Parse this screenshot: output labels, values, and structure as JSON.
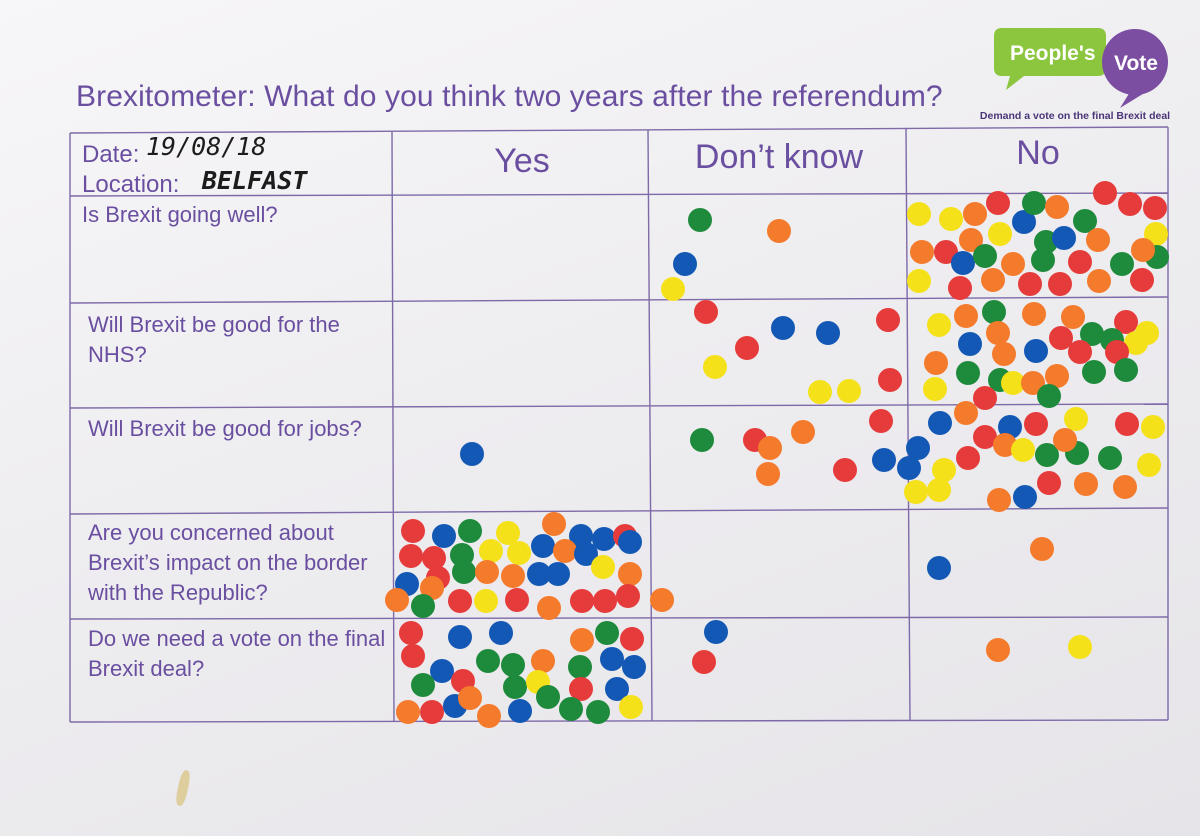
{
  "title": "Brexitometer: What do you think two years after the referendum?",
  "logo": {
    "line1": "People's",
    "line2": "Vote",
    "tagline": "Demand a vote on the final Brexit deal"
  },
  "header": {
    "date_label": "Date:",
    "date_value": "19/08/18",
    "location_label": "Location:",
    "location_value": "BELFAST",
    "columns": [
      "Yes",
      "Don’t know",
      "No"
    ]
  },
  "questions": [
    "Is Brexit going well?",
    "Will Brexit be good for the NHS?",
    "Will Brexit be good for jobs?",
    "Are you concerned about Brexit’s impact on the border with the Republic?",
    "Do we need a vote on the final Brexit deal?"
  ],
  "colors": {
    "ink": "#6a4fa0",
    "grid": "#7e6aa8",
    "logo_green": "#8cc63f",
    "logo_purple": "#7b4ea2",
    "sticker_red": "#e63b3b",
    "sticker_orange": "#f47a2c",
    "sticker_yellow": "#f5e11a",
    "sticker_green": "#1e8a3c",
    "sticker_blue": "#1358b5"
  }
}
